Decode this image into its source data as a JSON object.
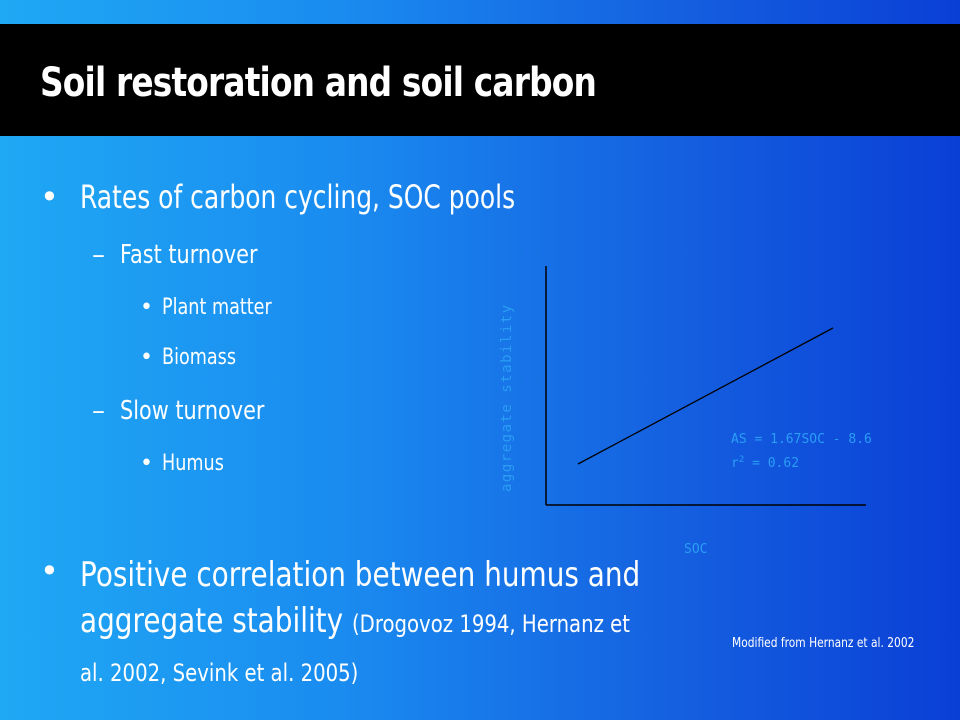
{
  "slide": {
    "title": "Soil restoration and soil carbon",
    "bullets": {
      "rates": "Rates of carbon cycling, SOC pools",
      "fast": "Fast turnover",
      "plant": "Plant matter",
      "biomass": "Biomass",
      "slow": "Slow turnover",
      "humus": "Humus",
      "correlation": "Positive correlation between humus and aggregate stability",
      "citation": "(Drogovoz 1994, Hernanz et al. 2002, Sevink et al. 2005)"
    },
    "marks": {
      "bullet": "•",
      "dash": "–"
    }
  },
  "chart_data": {
    "type": "line",
    "xlabel": "SOC",
    "ylabel": "aggregate stability",
    "equation": "AS = 1.67SOC - 8.6",
    "r2_prefix": "r",
    "r2_sup": "2",
    "r2_value": " = 0.62",
    "caption": "Modified from Hernanz et al. 2002"
  },
  "colors": {
    "title_bar": "#000000",
    "text": "#ffffff",
    "chart_line": "#000000",
    "chart_text": "#2a9df5"
  }
}
